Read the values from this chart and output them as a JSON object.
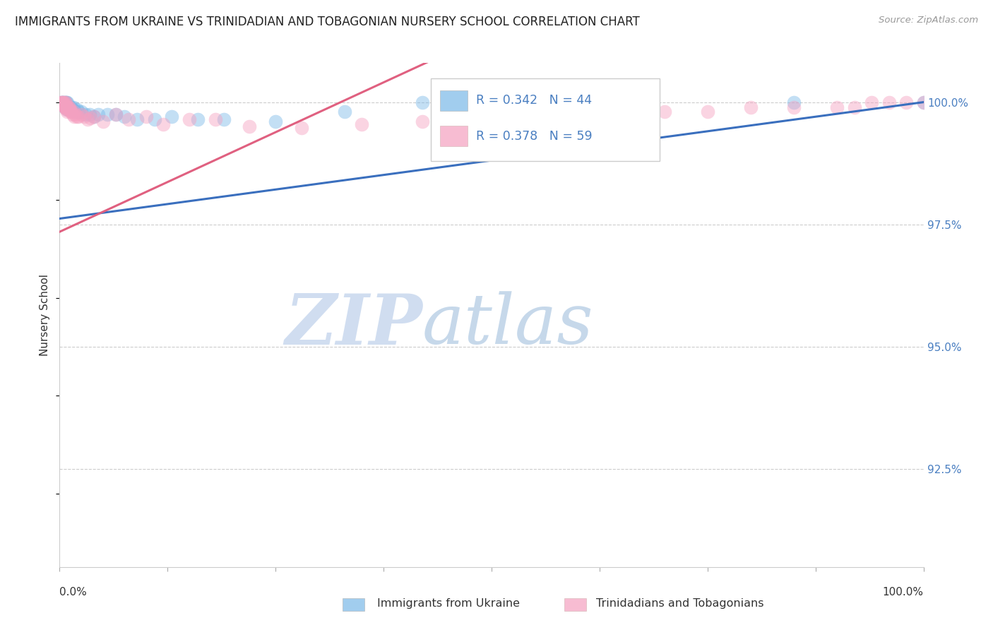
{
  "title": "IMMIGRANTS FROM UKRAINE VS TRINIDADIAN AND TOBAGONIAN NURSERY SCHOOL CORRELATION CHART",
  "source": "Source: ZipAtlas.com",
  "ylabel": "Nursery School",
  "legend_ukraine": "Immigrants from Ukraine",
  "legend_trinidad": "Trinidadians and Tobagonians",
  "ukraine_color": "#7ab8e8",
  "trinidad_color": "#f5a0c0",
  "ukraine_line_color": "#3a6fbe",
  "trinidad_line_color": "#e06080",
  "xlim": [
    0.0,
    1.0
  ],
  "ylim": [
    0.905,
    1.008
  ],
  "yticks": [
    0.925,
    0.95,
    0.975,
    1.0
  ],
  "ytick_labels": [
    "92.5%",
    "95.0%",
    "97.5%",
    "100.0%"
  ],
  "watermark_zip": "ZIP",
  "watermark_atlas": "atlas",
  "background_color": "#ffffff",
  "ukraine_x": [
    0.002,
    0.003,
    0.003,
    0.004,
    0.004,
    0.005,
    0.005,
    0.006,
    0.006,
    0.007,
    0.007,
    0.008,
    0.008,
    0.009,
    0.009,
    0.01,
    0.011,
    0.012,
    0.013,
    0.014,
    0.015,
    0.016,
    0.018,
    0.02,
    0.022,
    0.025,
    0.03,
    0.035,
    0.04,
    0.045,
    0.055,
    0.065,
    0.075,
    0.09,
    0.11,
    0.13,
    0.16,
    0.19,
    0.25,
    0.33,
    0.42,
    0.55,
    0.85,
    1.0
  ],
  "ukraine_y": [
    1.0,
    1.0,
    0.9995,
    1.0,
    0.9995,
    1.0,
    0.9995,
    1.0,
    0.999,
    1.0,
    0.9995,
    1.0,
    0.999,
    1.0,
    0.9985,
    0.999,
    0.999,
    0.999,
    0.999,
    0.999,
    0.9985,
    0.999,
    0.998,
    0.9985,
    0.998,
    0.998,
    0.9975,
    0.9975,
    0.997,
    0.9975,
    0.9975,
    0.9975,
    0.997,
    0.9965,
    0.9965,
    0.997,
    0.9965,
    0.9965,
    0.996,
    0.998,
    1.0,
    1.0,
    1.0,
    1.0
  ],
  "trinidad_x": [
    0.001,
    0.002,
    0.002,
    0.003,
    0.003,
    0.004,
    0.004,
    0.005,
    0.005,
    0.006,
    0.006,
    0.006,
    0.007,
    0.007,
    0.007,
    0.008,
    0.008,
    0.009,
    0.009,
    0.01,
    0.01,
    0.011,
    0.012,
    0.013,
    0.014,
    0.015,
    0.016,
    0.017,
    0.018,
    0.02,
    0.022,
    0.025,
    0.028,
    0.032,
    0.036,
    0.04,
    0.05,
    0.065,
    0.08,
    0.1,
    0.12,
    0.15,
    0.18,
    0.22,
    0.28,
    0.35,
    0.42,
    0.5,
    0.6,
    0.7,
    0.75,
    0.8,
    0.85,
    0.9,
    0.92,
    0.94,
    0.96,
    0.98,
    1.0
  ],
  "trinidad_y": [
    1.0,
    1.0,
    0.9998,
    1.0,
    0.9995,
    1.0,
    0.9995,
    1.0,
    0.9992,
    1.0,
    0.9995,
    0.999,
    1.0,
    0.999,
    0.9988,
    0.999,
    0.9985,
    0.999,
    0.998,
    0.999,
    0.9985,
    0.999,
    0.9985,
    0.998,
    0.998,
    0.9975,
    0.998,
    0.997,
    0.9975,
    0.997,
    0.997,
    0.9975,
    0.997,
    0.9965,
    0.9968,
    0.997,
    0.996,
    0.9975,
    0.9965,
    0.997,
    0.9955,
    0.9965,
    0.9965,
    0.995,
    0.9948,
    0.9955,
    0.996,
    0.996,
    0.997,
    0.998,
    0.998,
    0.999,
    0.999,
    0.999,
    0.999,
    1.0,
    1.0,
    1.0,
    1.0
  ],
  "ukraine_line_x0": 0.0,
  "ukraine_line_y0": 0.9762,
  "ukraine_line_x1": 1.0,
  "ukraine_line_y1": 1.0,
  "trinidad_line_x0": 0.0,
  "trinidad_line_y0": 0.9735,
  "trinidad_line_x1": 0.35,
  "trinidad_line_y1": 1.002
}
